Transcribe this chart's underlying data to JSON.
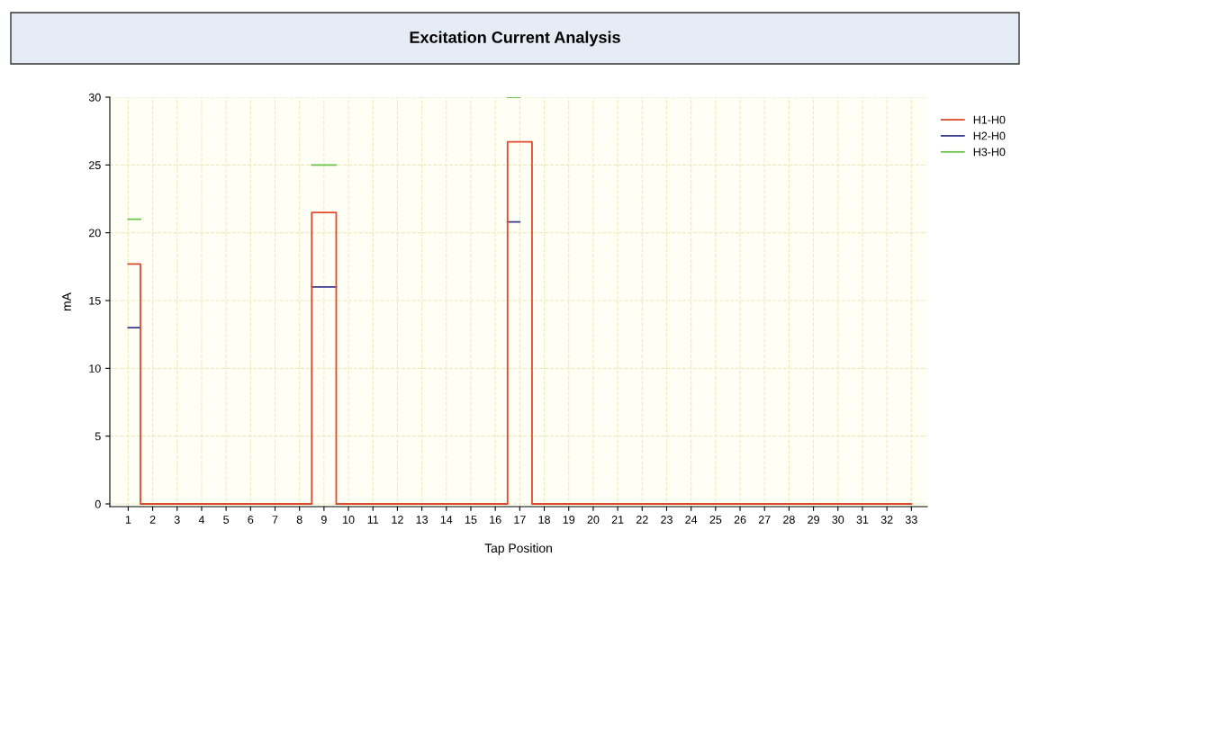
{
  "chart_data": {
    "type": "step",
    "title": "Excitation Current Analysis",
    "xlabel": "Tap Position",
    "ylabel": "mA",
    "x": [
      1,
      2,
      3,
      4,
      5,
      6,
      7,
      8,
      9,
      10,
      11,
      12,
      13,
      14,
      15,
      16,
      17,
      18,
      19,
      20,
      21,
      22,
      23,
      24,
      25,
      26,
      27,
      28,
      29,
      30,
      31,
      32,
      33
    ],
    "series": [
      {
        "name": "H1-H0",
        "color": "#e04a2a",
        "values": [
          17.7,
          0,
          0,
          0,
          0,
          0,
          0,
          0,
          21.5,
          0,
          0,
          0,
          0,
          0,
          0,
          0,
          26.7,
          0,
          0,
          0,
          0,
          0,
          0,
          0,
          0,
          0,
          0,
          0,
          0,
          0,
          0,
          0,
          0
        ]
      },
      {
        "name": "H2-H0",
        "color": "#3a3a8c",
        "values": [
          13.0,
          null,
          null,
          null,
          null,
          null,
          null,
          null,
          16.0,
          null,
          null,
          null,
          null,
          null,
          null,
          null,
          20.8,
          null,
          null,
          null,
          null,
          null,
          null,
          null,
          null,
          null,
          null,
          null,
          null,
          null,
          null,
          null,
          null
        ]
      },
      {
        "name": "H3-H0",
        "color": "#6cc24a",
        "values": [
          21.0,
          null,
          null,
          null,
          null,
          null,
          null,
          null,
          25.0,
          null,
          null,
          null,
          null,
          null,
          null,
          null,
          30.0,
          null,
          null,
          null,
          null,
          null,
          null,
          null,
          null,
          null,
          null,
          null,
          null,
          null,
          null,
          null,
          null
        ]
      }
    ],
    "xlim": [
      0.25,
      33.65
    ],
    "xticks": [
      1,
      2,
      3,
      4,
      5,
      6,
      7,
      8,
      9,
      10,
      11,
      12,
      13,
      14,
      15,
      16,
      17,
      18,
      19,
      20,
      21,
      22,
      23,
      24,
      25,
      26,
      27,
      28,
      29,
      30,
      31,
      32,
      33
    ],
    "ylim": [
      -0.2,
      30
    ],
    "yticks": [
      0,
      5,
      10,
      15,
      20,
      25,
      30
    ],
    "grid": true,
    "legend": "top right",
    "line_style": "solid",
    "marker": "none"
  }
}
